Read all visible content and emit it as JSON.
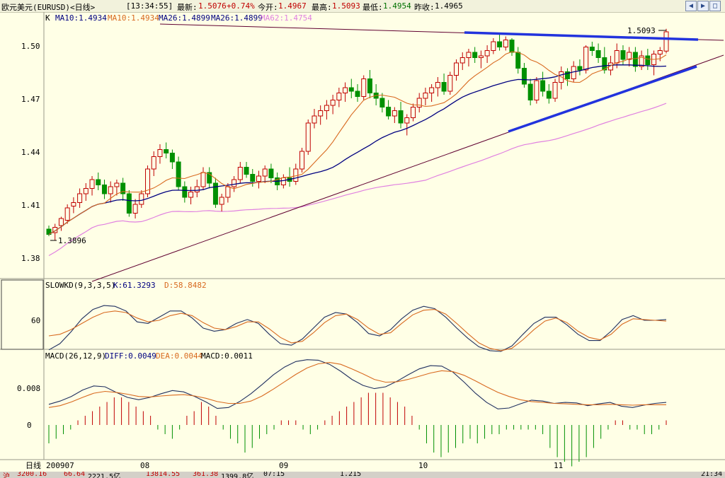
{
  "header": {
    "title": "欧元美元(EURUSD)<日线>",
    "time": "[13:34:55]",
    "latest_label": "最新:",
    "latest_value": "1.5076",
    "change_value": "+0.74%",
    "open_label": "今开:",
    "open_value": "1.4967",
    "high_label": "最高:",
    "high_value": "1.5093",
    "low_label": "最低:",
    "low_value": "1.4954",
    "prev_label": "昨收:",
    "prev_value": "1.4965"
  },
  "main_legend": {
    "k": "K",
    "ma10a": "MA10:1.4934",
    "ma10b": "MA10:1.4934",
    "ma26a": "MA26:1.4899",
    "ma26b": "MA26:1.4899",
    "ma62": "MA62:1.4754"
  },
  "kd_legend": {
    "name": "SLOWKD(9,3,3,5)",
    "k": "K:61.3293",
    "d": "D:58.8482"
  },
  "macd_legend": {
    "name": "MACD(26,12,9)",
    "diff": "DIFF:0.0049",
    "dea": "DEA:0.0044",
    "macd": "MACD:0.0011"
  },
  "annotations": {
    "high": "1.5093",
    "low": "1.3896"
  },
  "axis": {
    "price_ticks": [
      "1.50",
      "1.47",
      "1.44",
      "1.41",
      "1.38"
    ],
    "kd_tick": "60",
    "macd_ticks": [
      "0.008",
      "0"
    ],
    "period_label": "日线",
    "dates": [
      "200907",
      "08",
      "09",
      "10",
      "11"
    ]
  },
  "footer": {
    "item1": "沪",
    "item2": "3200.16",
    "item3": "66.64",
    "item4": "2221.5亿",
    "item5": "13814.55",
    "item6": "361.38",
    "item7": "1399.8亿",
    "item8": "07:15",
    "item9": "1.215",
    "time": "21:34"
  },
  "colors": {
    "background": "#ffffe6",
    "up": "#c00000",
    "down": "#009000",
    "ma10": "#d86a20",
    "ma26": "#000080",
    "ma62": "#e080e0",
    "trend": "#2233dd",
    "long_trend": "#600030"
  },
  "chart_data": {
    "type": "candlestick",
    "symbol": "EURUSD",
    "period": "daily",
    "ylim": [
      1.37,
      1.515
    ],
    "candles": [
      {
        "o": 1.396,
        "h": 1.398,
        "l": 1.392,
        "c": 1.393
      },
      {
        "o": 1.394,
        "h": 1.399,
        "l": 1.3896,
        "c": 1.397
      },
      {
        "o": 1.398,
        "h": 1.403,
        "l": 1.395,
        "c": 1.402
      },
      {
        "o": 1.401,
        "h": 1.41,
        "l": 1.399,
        "c": 1.408
      },
      {
        "o": 1.409,
        "h": 1.414,
        "l": 1.405,
        "c": 1.411
      },
      {
        "o": 1.411,
        "h": 1.419,
        "l": 1.408,
        "c": 1.416
      },
      {
        "o": 1.416,
        "h": 1.422,
        "l": 1.412,
        "c": 1.419
      },
      {
        "o": 1.419,
        "h": 1.426,
        "l": 1.415,
        "c": 1.424
      },
      {
        "o": 1.424,
        "h": 1.428,
        "l": 1.418,
        "c": 1.421
      },
      {
        "o": 1.421,
        "h": 1.424,
        "l": 1.413,
        "c": 1.416
      },
      {
        "o": 1.416,
        "h": 1.423,
        "l": 1.411,
        "c": 1.42
      },
      {
        "o": 1.42,
        "h": 1.424,
        "l": 1.415,
        "c": 1.422
      },
      {
        "o": 1.422,
        "h": 1.425,
        "l": 1.412,
        "c": 1.416
      },
      {
        "o": 1.416,
        "h": 1.418,
        "l": 1.403,
        "c": 1.405
      },
      {
        "o": 1.405,
        "h": 1.413,
        "l": 1.402,
        "c": 1.41
      },
      {
        "o": 1.41,
        "h": 1.418,
        "l": 1.408,
        "c": 1.416
      },
      {
        "o": 1.416,
        "h": 1.432,
        "l": 1.414,
        "c": 1.43
      },
      {
        "o": 1.43,
        "h": 1.44,
        "l": 1.426,
        "c": 1.437
      },
      {
        "o": 1.437,
        "h": 1.444,
        "l": 1.433,
        "c": 1.441
      },
      {
        "o": 1.441,
        "h": 1.445,
        "l": 1.436,
        "c": 1.439
      },
      {
        "o": 1.439,
        "h": 1.441,
        "l": 1.43,
        "c": 1.434
      },
      {
        "o": 1.434,
        "h": 1.437,
        "l": 1.418,
        "c": 1.42
      },
      {
        "o": 1.42,
        "h": 1.423,
        "l": 1.411,
        "c": 1.414
      },
      {
        "o": 1.414,
        "h": 1.42,
        "l": 1.41,
        "c": 1.417
      },
      {
        "o": 1.417,
        "h": 1.424,
        "l": 1.414,
        "c": 1.42
      },
      {
        "o": 1.42,
        "h": 1.431,
        "l": 1.418,
        "c": 1.428
      },
      {
        "o": 1.428,
        "h": 1.431,
        "l": 1.419,
        "c": 1.422
      },
      {
        "o": 1.422,
        "h": 1.425,
        "l": 1.408,
        "c": 1.41
      },
      {
        "o": 1.41,
        "h": 1.416,
        "l": 1.406,
        "c": 1.414
      },
      {
        "o": 1.414,
        "h": 1.422,
        "l": 1.411,
        "c": 1.42
      },
      {
        "o": 1.42,
        "h": 1.426,
        "l": 1.417,
        "c": 1.424
      },
      {
        "o": 1.424,
        "h": 1.434,
        "l": 1.422,
        "c": 1.431
      },
      {
        "o": 1.431,
        "h": 1.434,
        "l": 1.425,
        "c": 1.427
      },
      {
        "o": 1.427,
        "h": 1.43,
        "l": 1.42,
        "c": 1.423
      },
      {
        "o": 1.423,
        "h": 1.429,
        "l": 1.419,
        "c": 1.426
      },
      {
        "o": 1.426,
        "h": 1.432,
        "l": 1.422,
        "c": 1.43
      },
      {
        "o": 1.43,
        "h": 1.433,
        "l": 1.422,
        "c": 1.425
      },
      {
        "o": 1.425,
        "h": 1.428,
        "l": 1.418,
        "c": 1.421
      },
      {
        "o": 1.421,
        "h": 1.427,
        "l": 1.419,
        "c": 1.425
      },
      {
        "o": 1.425,
        "h": 1.431,
        "l": 1.42,
        "c": 1.423
      },
      {
        "o": 1.423,
        "h": 1.433,
        "l": 1.421,
        "c": 1.43
      },
      {
        "o": 1.43,
        "h": 1.442,
        "l": 1.428,
        "c": 1.44
      },
      {
        "o": 1.44,
        "h": 1.458,
        "l": 1.438,
        "c": 1.456
      },
      {
        "o": 1.456,
        "h": 1.464,
        "l": 1.453,
        "c": 1.46
      },
      {
        "o": 1.46,
        "h": 1.466,
        "l": 1.455,
        "c": 1.463
      },
      {
        "o": 1.463,
        "h": 1.469,
        "l": 1.458,
        "c": 1.466
      },
      {
        "o": 1.466,
        "h": 1.472,
        "l": 1.461,
        "c": 1.469
      },
      {
        "o": 1.469,
        "h": 1.476,
        "l": 1.465,
        "c": 1.473
      },
      {
        "o": 1.473,
        "h": 1.479,
        "l": 1.468,
        "c": 1.476
      },
      {
        "o": 1.476,
        "h": 1.481,
        "l": 1.47,
        "c": 1.474
      },
      {
        "o": 1.474,
        "h": 1.478,
        "l": 1.468,
        "c": 1.471
      },
      {
        "o": 1.471,
        "h": 1.483,
        "l": 1.469,
        "c": 1.481
      },
      {
        "o": 1.481,
        "h": 1.486,
        "l": 1.47,
        "c": 1.473
      },
      {
        "o": 1.473,
        "h": 1.478,
        "l": 1.466,
        "c": 1.47
      },
      {
        "o": 1.47,
        "h": 1.473,
        "l": 1.462,
        "c": 1.465
      },
      {
        "o": 1.465,
        "h": 1.469,
        "l": 1.458,
        "c": 1.46
      },
      {
        "o": 1.46,
        "h": 1.465,
        "l": 1.456,
        "c": 1.463
      },
      {
        "o": 1.463,
        "h": 1.468,
        "l": 1.453,
        "c": 1.456
      },
      {
        "o": 1.456,
        "h": 1.461,
        "l": 1.449,
        "c": 1.459
      },
      {
        "o": 1.459,
        "h": 1.467,
        "l": 1.457,
        "c": 1.465
      },
      {
        "o": 1.465,
        "h": 1.473,
        "l": 1.462,
        "c": 1.47
      },
      {
        "o": 1.47,
        "h": 1.476,
        "l": 1.466,
        "c": 1.473
      },
      {
        "o": 1.473,
        "h": 1.478,
        "l": 1.468,
        "c": 1.476
      },
      {
        "o": 1.476,
        "h": 1.482,
        "l": 1.471,
        "c": 1.479
      },
      {
        "o": 1.479,
        "h": 1.484,
        "l": 1.472,
        "c": 1.474
      },
      {
        "o": 1.474,
        "h": 1.485,
        "l": 1.472,
        "c": 1.483
      },
      {
        "o": 1.483,
        "h": 1.492,
        "l": 1.48,
        "c": 1.49
      },
      {
        "o": 1.49,
        "h": 1.496,
        "l": 1.486,
        "c": 1.493
      },
      {
        "o": 1.493,
        "h": 1.498,
        "l": 1.488,
        "c": 1.496
      },
      {
        "o": 1.496,
        "h": 1.499,
        "l": 1.49,
        "c": 1.493
      },
      {
        "o": 1.493,
        "h": 1.497,
        "l": 1.487,
        "c": 1.494
      },
      {
        "o": 1.494,
        "h": 1.5,
        "l": 1.49,
        "c": 1.497
      },
      {
        "o": 1.497,
        "h": 1.504,
        "l": 1.495,
        "c": 1.502
      },
      {
        "o": 1.502,
        "h": 1.506,
        "l": 1.497,
        "c": 1.499
      },
      {
        "o": 1.499,
        "h": 1.505,
        "l": 1.497,
        "c": 1.503
      },
      {
        "o": 1.503,
        "h": 1.504,
        "l": 1.494,
        "c": 1.496
      },
      {
        "o": 1.496,
        "h": 1.499,
        "l": 1.484,
        "c": 1.487
      },
      {
        "o": 1.487,
        "h": 1.49,
        "l": 1.476,
        "c": 1.478
      },
      {
        "o": 1.478,
        "h": 1.481,
        "l": 1.466,
        "c": 1.469
      },
      {
        "o": 1.469,
        "h": 1.482,
        "l": 1.467,
        "c": 1.48
      },
      {
        "o": 1.48,
        "h": 1.485,
        "l": 1.471,
        "c": 1.474
      },
      {
        "o": 1.474,
        "h": 1.478,
        "l": 1.467,
        "c": 1.47
      },
      {
        "o": 1.47,
        "h": 1.481,
        "l": 1.468,
        "c": 1.479
      },
      {
        "o": 1.479,
        "h": 1.488,
        "l": 1.475,
        "c": 1.485
      },
      {
        "o": 1.485,
        "h": 1.487,
        "l": 1.477,
        "c": 1.481
      },
      {
        "o": 1.481,
        "h": 1.491,
        "l": 1.479,
        "c": 1.488
      },
      {
        "o": 1.488,
        "h": 1.492,
        "l": 1.483,
        "c": 1.486
      },
      {
        "o": 1.486,
        "h": 1.5,
        "l": 1.484,
        "c": 1.499
      },
      {
        "o": 1.499,
        "h": 1.502,
        "l": 1.494,
        "c": 1.497
      },
      {
        "o": 1.497,
        "h": 1.501,
        "l": 1.49,
        "c": 1.493
      },
      {
        "o": 1.493,
        "h": 1.499,
        "l": 1.484,
        "c": 1.486
      },
      {
        "o": 1.486,
        "h": 1.494,
        "l": 1.483,
        "c": 1.49
      },
      {
        "o": 1.49,
        "h": 1.501,
        "l": 1.487,
        "c": 1.497
      },
      {
        "o": 1.497,
        "h": 1.5,
        "l": 1.489,
        "c": 1.492
      },
      {
        "o": 1.492,
        "h": 1.499,
        "l": 1.488,
        "c": 1.496
      },
      {
        "o": 1.496,
        "h": 1.499,
        "l": 1.485,
        "c": 1.488
      },
      {
        "o": 1.488,
        "h": 1.497,
        "l": 1.486,
        "c": 1.494
      },
      {
        "o": 1.494,
        "h": 1.498,
        "l": 1.486,
        "c": 1.489
      },
      {
        "o": 1.489,
        "h": 1.497,
        "l": 1.483,
        "c": 1.495
      },
      {
        "o": 1.495,
        "h": 1.499,
        "l": 1.491,
        "c": 1.497
      },
      {
        "o": 1.4967,
        "h": 1.5093,
        "l": 1.4954,
        "c": 1.5076
      }
    ],
    "ma_periods": [
      10,
      26,
      62
    ],
    "kd": {
      "k": [
        22,
        30,
        45,
        62,
        74,
        79,
        78,
        72,
        58,
        56,
        64,
        72,
        72,
        63,
        50,
        46,
        48,
        56,
        61,
        56,
        42,
        30,
        28,
        36,
        50,
        64,
        70,
        68,
        57,
        43,
        40,
        48,
        62,
        73,
        78,
        75,
        64,
        50,
        37,
        26,
        21,
        20,
        27,
        42,
        56,
        64,
        64,
        54,
        42,
        34,
        34,
        46,
        61,
        66,
        60,
        60,
        61
      ],
      "d": [
        40,
        42,
        48,
        56,
        64,
        70,
        72,
        70,
        63,
        58,
        60,
        66,
        69,
        66,
        57,
        50,
        48,
        52,
        58,
        58,
        49,
        38,
        31,
        33,
        44,
        57,
        66,
        68,
        61,
        50,
        42,
        44,
        56,
        67,
        73,
        74,
        68,
        56,
        43,
        31,
        24,
        21,
        24,
        35,
        48,
        59,
        63,
        57,
        46,
        38,
        35,
        42,
        55,
        62,
        61,
        60,
        59
      ]
    },
    "macd": {
      "diff": [
        0.0045,
        0.0052,
        0.0062,
        0.0076,
        0.0085,
        0.0083,
        0.0071,
        0.006,
        0.0055,
        0.006,
        0.0068,
        0.0075,
        0.0072,
        0.0062,
        0.005,
        0.0036,
        0.0038,
        0.0051,
        0.0068,
        0.0088,
        0.0109,
        0.0126,
        0.0138,
        0.0142,
        0.0141,
        0.0132,
        0.0117,
        0.0099,
        0.0086,
        0.0079,
        0.0083,
        0.0095,
        0.0109,
        0.0122,
        0.0129,
        0.0128,
        0.0115,
        0.0093,
        0.0069,
        0.0049,
        0.0035,
        0.0037,
        0.0046,
        0.0054,
        0.0052,
        0.0047,
        0.0049,
        0.0048,
        0.0042,
        0.0046,
        0.0049,
        0.0041,
        0.0038,
        0.0043,
        0.0047,
        0.0049
      ],
      "dea": [
        0.0038,
        0.0042,
        0.005,
        0.006,
        0.0069,
        0.0073,
        0.0071,
        0.0067,
        0.0062,
        0.0061,
        0.0063,
        0.0065,
        0.0066,
        0.0063,
        0.0058,
        0.0051,
        0.0047,
        0.0047,
        0.0052,
        0.0063,
        0.0078,
        0.0094,
        0.011,
        0.0124,
        0.0133,
        0.0136,
        0.0132,
        0.0122,
        0.0111,
        0.0099,
        0.0093,
        0.0094,
        0.0099,
        0.0106,
        0.0113,
        0.0118,
        0.0116,
        0.0108,
        0.0096,
        0.0083,
        0.0071,
        0.0062,
        0.0055,
        0.0051,
        0.0049,
        0.0047,
        0.0046,
        0.0045,
        0.0044,
        0.0044,
        0.0045,
        0.0044,
        0.0043,
        0.0044,
        0.0044,
        0.0044
      ],
      "hist": [
        -0.004,
        -0.003,
        -0.002,
        -0.001,
        0.001,
        0.002,
        0.003,
        0.004,
        0.005,
        0.006,
        0.006,
        0.005,
        0.004,
        0.003,
        0.002,
        -0.001,
        -0.002,
        -0.003,
        -0.001,
        0.002,
        0.003,
        0.005,
        0.004,
        0.002,
        -0.001,
        -0.003,
        -0.004,
        -0.006,
        -0.005,
        -0.003,
        -0.002,
        -0.001,
        0.001,
        0.001,
        0.001,
        -0.001,
        -0.002,
        -0.001,
        0.001,
        0.002,
        0.003,
        0.004,
        0.005,
        0.006,
        0.007,
        0.007,
        0.007,
        0.006,
        0.005,
        0.004,
        0.002,
        -0.001,
        -0.004,
        -0.006,
        -0.007,
        -0.006,
        -0.005,
        -0.004,
        -0.003,
        -0.004,
        -0.003,
        -0.002,
        -0.002,
        -0.001,
        -0.001,
        -0.001,
        -0.001,
        -0.001,
        -0.002,
        -0.005,
        -0.007,
        -0.008,
        -0.009,
        -0.008,
        -0.007,
        -0.005,
        -0.003,
        -0.001,
        0.001,
        0.001,
        -0.001,
        -0.001,
        -0.002,
        -0.002,
        -0.001,
        0.001
      ]
    }
  }
}
